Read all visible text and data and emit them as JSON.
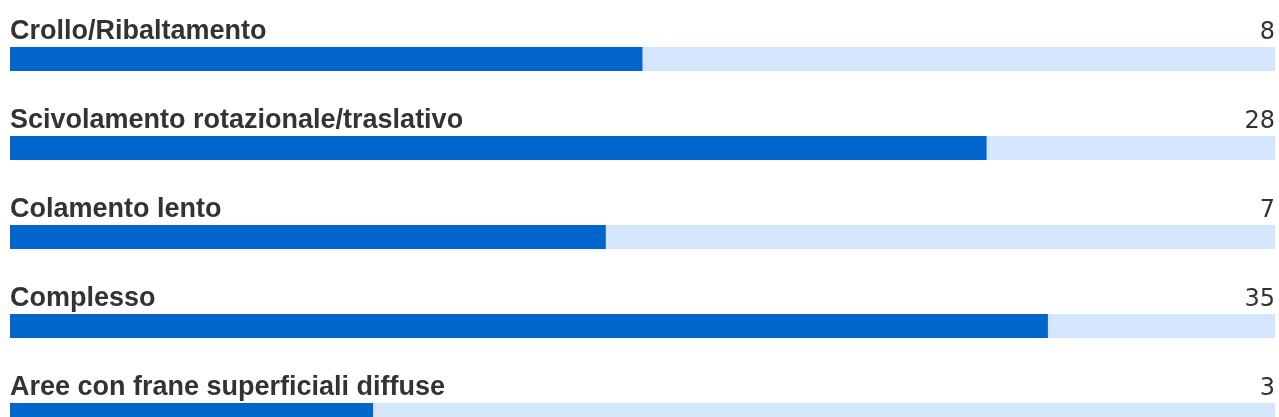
{
  "chart_data": {
    "type": "bar",
    "orientation": "horizontal",
    "log": "x",
    "categories": [
      "Crollo/Ribaltamento",
      "Scivolamento rotazionale/traslativo",
      "Colamento lento",
      "Complesso",
      "Aree con frane superficiali diffuse"
    ],
    "values": [
      8,
      28,
      7,
      35,
      3
    ],
    "color": "#0066cc",
    "xlim": [
      0.8,
      80
    ],
    "data_labels": true
  }
}
